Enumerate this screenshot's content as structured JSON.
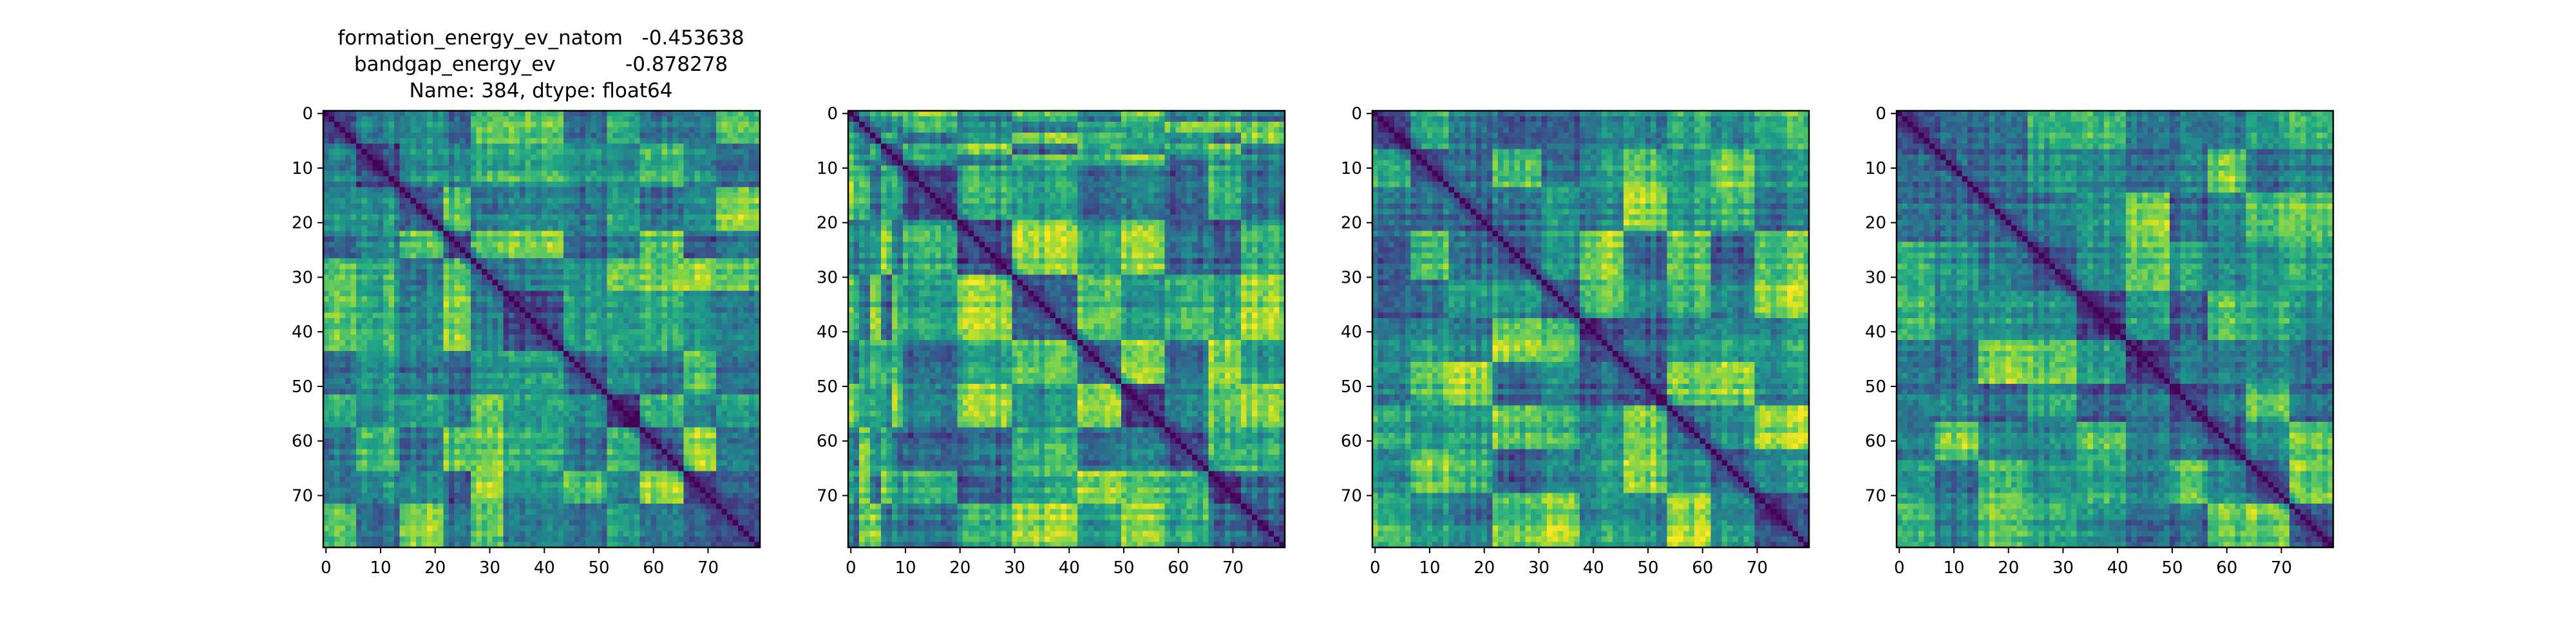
{
  "chart_data": [
    {
      "type": "heatmap",
      "title_lines": [
        "formation_energy_ev_natom   -0.453638",
        "bandgap_energy_ev           -0.878278",
        "Name: 384, dtype: float64"
      ],
      "xlabel": "",
      "ylabel": "",
      "size": 80,
      "colormap": "viridis",
      "block_boundaries": [
        0,
        6,
        14,
        22,
        27,
        33,
        44,
        52,
        58,
        66,
        72,
        80
      ],
      "x_ticks": [
        0,
        10,
        20,
        30,
        40,
        50,
        60,
        70
      ],
      "y_ticks": [
        0,
        10,
        20,
        30,
        40,
        50,
        60,
        70
      ],
      "xlim": [
        0,
        80
      ],
      "ylim": [
        80,
        0
      ],
      "diagonal_value": 0.0,
      "approx_value_range": [
        0.0,
        1.0
      ],
      "seed": 11
    },
    {
      "type": "heatmap",
      "title_lines": [],
      "xlabel": "",
      "ylabel": "",
      "size": 80,
      "colormap": "viridis",
      "block_boundaries": [
        0,
        2,
        4,
        6,
        8,
        10,
        20,
        30,
        42,
        50,
        58,
        66,
        72,
        80
      ],
      "x_ticks": [
        0,
        10,
        20,
        30,
        40,
        50,
        60,
        70
      ],
      "y_ticks": [
        0,
        10,
        20,
        30,
        40,
        50,
        60,
        70
      ],
      "xlim": [
        0,
        80
      ],
      "ylim": [
        80,
        0
      ],
      "diagonal_value": 0.0,
      "approx_value_range": [
        0.0,
        1.0
      ],
      "seed": 23
    },
    {
      "type": "heatmap",
      "title_lines": [],
      "xlabel": "",
      "ylabel": "",
      "size": 80,
      "colormap": "viridis",
      "block_boundaries": [
        0,
        7,
        14,
        22,
        31,
        38,
        46,
        54,
        62,
        70,
        80
      ],
      "x_ticks": [
        0,
        10,
        20,
        30,
        40,
        50,
        60,
        70
      ],
      "y_ticks": [
        0,
        10,
        20,
        30,
        40,
        50,
        60,
        70
      ],
      "xlim": [
        0,
        80
      ],
      "ylim": [
        80,
        0
      ],
      "diagonal_value": 0.0,
      "approx_value_range": [
        0.0,
        1.0
      ],
      "seed": 37
    },
    {
      "type": "heatmap",
      "title_lines": [],
      "xlabel": "",
      "ylabel": "",
      "size": 80,
      "colormap": "viridis",
      "block_boundaries": [
        0,
        7,
        15,
        24,
        33,
        42,
        50,
        57,
        64,
        72,
        80
      ],
      "x_ticks": [
        0,
        10,
        20,
        30,
        40,
        50,
        60,
        70
      ],
      "y_ticks": [
        0,
        10,
        20,
        30,
        40,
        50,
        60,
        70
      ],
      "xlim": [
        0,
        80
      ],
      "ylim": [
        80,
        0
      ],
      "diagonal_value": 0.0,
      "approx_value_range": [
        0.0,
        1.0
      ],
      "seed": 53
    }
  ]
}
